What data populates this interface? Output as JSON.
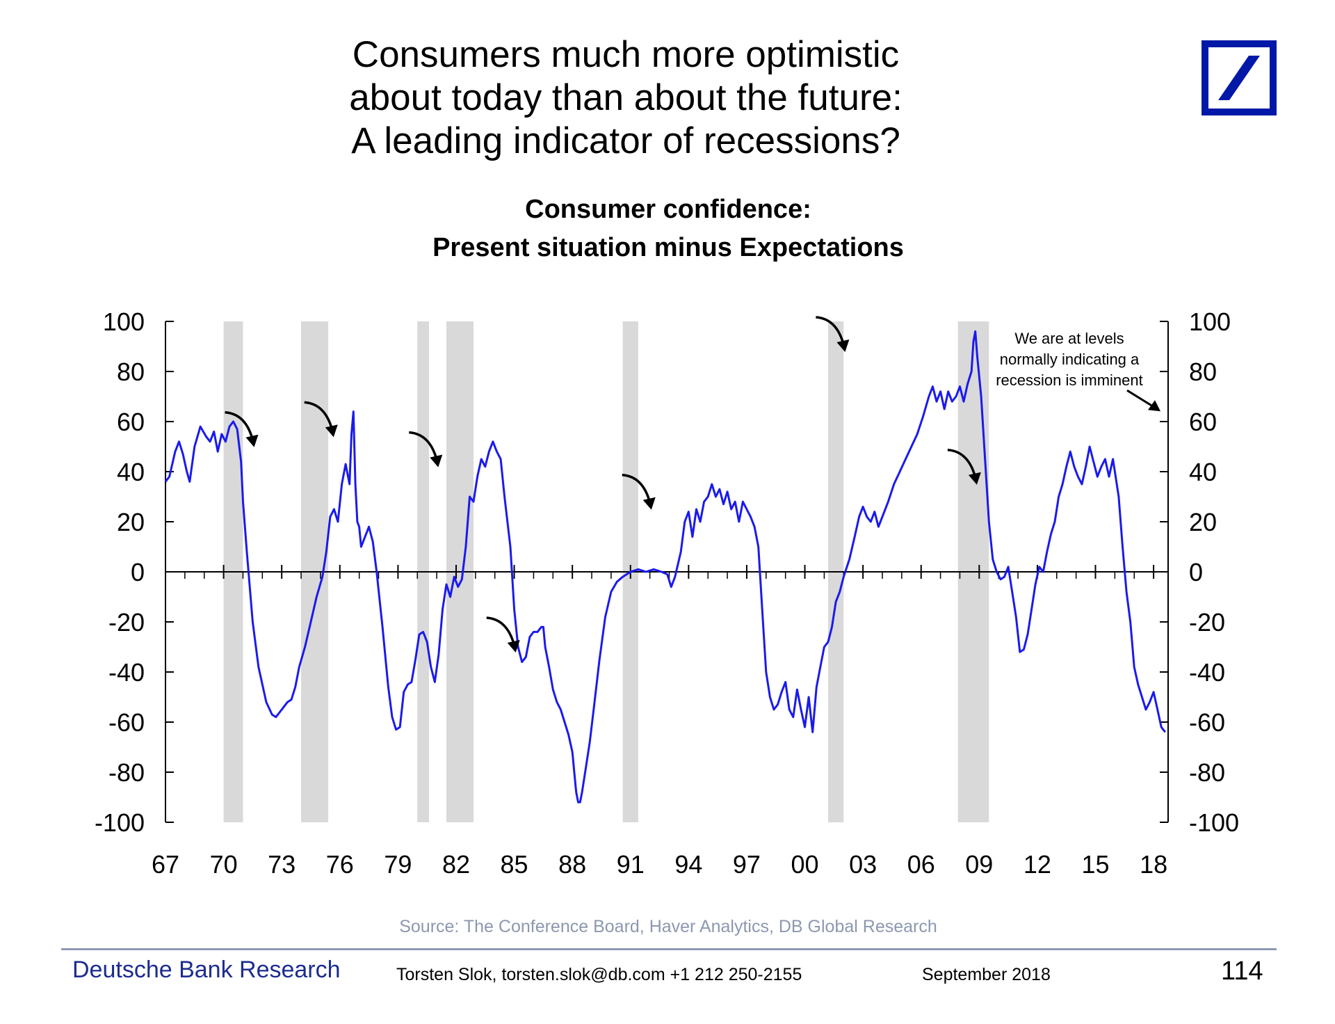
{
  "slide": {
    "title_lines": [
      "Consumers much more optimistic",
      "about today than about the future:",
      "A leading indicator of recessions?"
    ],
    "logo_icon": "deutsche-bank-slash-logo",
    "brand_color": "#0018a8"
  },
  "chart_data": {
    "type": "line",
    "title": "Consumer confidence:",
    "subtitle": "Present situation minus Expectations",
    "xlabel": "",
    "ylabel": "",
    "xlim": [
      1967,
      2018.75
    ],
    "ylim": [
      -100,
      100
    ],
    "yticks": [
      100,
      80,
      60,
      40,
      20,
      0,
      -20,
      -40,
      -60,
      -80,
      -100
    ],
    "ytick_labels": [
      "100",
      "80",
      "60",
      "40",
      "20",
      "0",
      "-20",
      "-40",
      "-60",
      "-80",
      "-100"
    ],
    "xticks": [
      1967,
      1970,
      1973,
      1976,
      1979,
      1982,
      1985,
      1988,
      1991,
      1994,
      1997,
      2000,
      2003,
      2006,
      2009,
      2012,
      2015,
      2018
    ],
    "xtick_labels": [
      "67",
      "70",
      "73",
      "76",
      "79",
      "82",
      "85",
      "88",
      "91",
      "94",
      "97",
      "00",
      "03",
      "06",
      "09",
      "12",
      "15",
      "18"
    ],
    "series": [
      {
        "name": "Present situation minus Expectations",
        "color": "#1a1aee",
        "points": [
          [
            1967.0,
            36
          ],
          [
            1967.2,
            38
          ],
          [
            1967.5,
            48
          ],
          [
            1967.7,
            52
          ],
          [
            1967.9,
            47
          ],
          [
            1968.1,
            40
          ],
          [
            1968.25,
            36
          ],
          [
            1968.5,
            50
          ],
          [
            1968.8,
            58
          ],
          [
            1969.1,
            54
          ],
          [
            1969.3,
            52
          ],
          [
            1969.5,
            56
          ],
          [
            1969.7,
            48
          ],
          [
            1969.9,
            55
          ],
          [
            1970.1,
            52
          ],
          [
            1970.3,
            58
          ],
          [
            1970.5,
            60
          ],
          [
            1970.7,
            57
          ],
          [
            1970.9,
            44
          ],
          [
            1971.0,
            28
          ],
          [
            1971.2,
            8
          ],
          [
            1971.5,
            -20
          ],
          [
            1971.8,
            -38
          ],
          [
            1972.2,
            -52
          ],
          [
            1972.5,
            -57
          ],
          [
            1972.7,
            -58
          ],
          [
            1973.0,
            -55
          ],
          [
            1973.3,
            -52
          ],
          [
            1973.5,
            -51
          ],
          [
            1973.7,
            -46
          ],
          [
            1973.9,
            -38
          ],
          [
            1974.2,
            -30
          ],
          [
            1974.5,
            -20
          ],
          [
            1974.8,
            -10
          ],
          [
            1975.1,
            -2
          ],
          [
            1975.3,
            8
          ],
          [
            1975.5,
            22
          ],
          [
            1975.7,
            25
          ],
          [
            1975.9,
            20
          ],
          [
            1976.1,
            35
          ],
          [
            1976.3,
            43
          ],
          [
            1976.5,
            35
          ],
          [
            1976.6,
            55
          ],
          [
            1976.7,
            64
          ],
          [
            1976.8,
            35
          ],
          [
            1976.9,
            20
          ],
          [
            1977.0,
            18
          ],
          [
            1977.1,
            10
          ],
          [
            1977.3,
            14
          ],
          [
            1977.5,
            18
          ],
          [
            1977.7,
            12
          ],
          [
            1977.9,
            0
          ],
          [
            1978.2,
            -22
          ],
          [
            1978.5,
            -46
          ],
          [
            1978.7,
            -58
          ],
          [
            1978.9,
            -63
          ],
          [
            1979.1,
            -62
          ],
          [
            1979.3,
            -48
          ],
          [
            1979.5,
            -45
          ],
          [
            1979.7,
            -44
          ],
          [
            1979.9,
            -35
          ],
          [
            1980.1,
            -25
          ],
          [
            1980.3,
            -24
          ],
          [
            1980.5,
            -28
          ],
          [
            1980.7,
            -38
          ],
          [
            1980.9,
            -44
          ],
          [
            1981.1,
            -33
          ],
          [
            1981.3,
            -15
          ],
          [
            1981.5,
            -5
          ],
          [
            1981.7,
            -10
          ],
          [
            1981.9,
            -2
          ],
          [
            1982.1,
            -6
          ],
          [
            1982.3,
            -3
          ],
          [
            1982.5,
            10
          ],
          [
            1982.7,
            30
          ],
          [
            1982.9,
            28
          ],
          [
            1983.1,
            38
          ],
          [
            1983.3,
            45
          ],
          [
            1983.5,
            42
          ],
          [
            1983.7,
            48
          ],
          [
            1983.9,
            52
          ],
          [
            1984.1,
            48
          ],
          [
            1984.3,
            45
          ],
          [
            1984.5,
            30
          ],
          [
            1984.8,
            10
          ],
          [
            1985.0,
            -15
          ],
          [
            1985.2,
            -30
          ],
          [
            1985.4,
            -36
          ],
          [
            1985.6,
            -34
          ],
          [
            1985.8,
            -26
          ],
          [
            1986.0,
            -24
          ],
          [
            1986.2,
            -24
          ],
          [
            1986.4,
            -22
          ],
          [
            1986.5,
            -22
          ],
          [
            1986.6,
            -30
          ],
          [
            1986.8,
            -38
          ],
          [
            1987.0,
            -47
          ],
          [
            1987.2,
            -52
          ],
          [
            1987.4,
            -55
          ],
          [
            1987.6,
            -60
          ],
          [
            1987.8,
            -65
          ],
          [
            1988.0,
            -72
          ],
          [
            1988.1,
            -80
          ],
          [
            1988.2,
            -88
          ],
          [
            1988.3,
            -92
          ],
          [
            1988.4,
            -92
          ],
          [
            1988.5,
            -88
          ],
          [
            1988.7,
            -78
          ],
          [
            1988.9,
            -68
          ],
          [
            1989.1,
            -55
          ],
          [
            1989.4,
            -35
          ],
          [
            1989.7,
            -18
          ],
          [
            1990.0,
            -8
          ],
          [
            1990.3,
            -4
          ],
          [
            1990.6,
            -2
          ],
          [
            1991.0,
            0
          ],
          [
            1991.4,
            1
          ],
          [
            1991.8,
            0
          ],
          [
            1992.2,
            1
          ],
          [
            1992.6,
            0
          ],
          [
            1992.9,
            -1
          ],
          [
            1993.1,
            -6
          ],
          [
            1993.3,
            -2
          ],
          [
            1993.6,
            8
          ],
          [
            1993.8,
            20
          ],
          [
            1994.0,
            24
          ],
          [
            1994.2,
            14
          ],
          [
            1994.4,
            25
          ],
          [
            1994.6,
            20
          ],
          [
            1994.8,
            28
          ],
          [
            1995.0,
            30
          ],
          [
            1995.2,
            35
          ],
          [
            1995.4,
            30
          ],
          [
            1995.6,
            33
          ],
          [
            1995.8,
            27
          ],
          [
            1996.0,
            32
          ],
          [
            1996.2,
            25
          ],
          [
            1996.4,
            28
          ],
          [
            1996.6,
            20
          ],
          [
            1996.8,
            28
          ],
          [
            1997.0,
            25
          ],
          [
            1997.2,
            22
          ],
          [
            1997.4,
            18
          ],
          [
            1997.6,
            10
          ],
          [
            1997.8,
            -15
          ],
          [
            1998.0,
            -40
          ],
          [
            1998.2,
            -50
          ],
          [
            1998.4,
            -55
          ],
          [
            1998.6,
            -53
          ],
          [
            1998.8,
            -48
          ],
          [
            1999.0,
            -44
          ],
          [
            1999.2,
            -55
          ],
          [
            1999.4,
            -58
          ],
          [
            1999.6,
            -47
          ],
          [
            1999.8,
            -55
          ],
          [
            2000.0,
            -62
          ],
          [
            2000.2,
            -50
          ],
          [
            2000.4,
            -64
          ],
          [
            2000.6,
            -46
          ],
          [
            2000.8,
            -38
          ],
          [
            2001.0,
            -30
          ],
          [
            2001.2,
            -28
          ],
          [
            2001.4,
            -22
          ],
          [
            2001.6,
            -12
          ],
          [
            2001.8,
            -8
          ],
          [
            2002.0,
            -2
          ],
          [
            2002.3,
            5
          ],
          [
            2002.6,
            15
          ],
          [
            2002.8,
            22
          ],
          [
            2003.0,
            26
          ],
          [
            2003.2,
            22
          ],
          [
            2003.4,
            20
          ],
          [
            2003.6,
            24
          ],
          [
            2003.8,
            18
          ],
          [
            2004.0,
            22
          ],
          [
            2004.3,
            28
          ],
          [
            2004.6,
            35
          ],
          [
            2004.9,
            40
          ],
          [
            2005.2,
            45
          ],
          [
            2005.5,
            50
          ],
          [
            2005.8,
            55
          ],
          [
            2006.1,
            62
          ],
          [
            2006.4,
            70
          ],
          [
            2006.6,
            74
          ],
          [
            2006.8,
            68
          ],
          [
            2007.0,
            72
          ],
          [
            2007.2,
            65
          ],
          [
            2007.4,
            72
          ],
          [
            2007.6,
            68
          ],
          [
            2007.8,
            70
          ],
          [
            2008.0,
            74
          ],
          [
            2008.2,
            68
          ],
          [
            2008.4,
            75
          ],
          [
            2008.6,
            80
          ],
          [
            2008.7,
            92
          ],
          [
            2008.8,
            96
          ],
          [
            2008.9,
            86
          ],
          [
            2009.1,
            70
          ],
          [
            2009.3,
            45
          ],
          [
            2009.5,
            20
          ],
          [
            2009.7,
            5
          ],
          [
            2009.9,
            0
          ],
          [
            2010.1,
            -3
          ],
          [
            2010.3,
            -2
          ],
          [
            2010.5,
            2
          ],
          [
            2010.7,
            -8
          ],
          [
            2010.9,
            -18
          ],
          [
            2011.1,
            -32
          ],
          [
            2011.3,
            -31
          ],
          [
            2011.5,
            -25
          ],
          [
            2011.7,
            -15
          ],
          [
            2011.9,
            -5
          ],
          [
            2012.1,
            2
          ],
          [
            2012.3,
            0
          ],
          [
            2012.5,
            8
          ],
          [
            2012.7,
            15
          ],
          [
            2012.9,
            20
          ],
          [
            2013.1,
            30
          ],
          [
            2013.3,
            35
          ],
          [
            2013.5,
            42
          ],
          [
            2013.7,
            48
          ],
          [
            2013.9,
            42
          ],
          [
            2014.1,
            38
          ],
          [
            2014.3,
            35
          ],
          [
            2014.5,
            42
          ],
          [
            2014.7,
            50
          ],
          [
            2014.9,
            44
          ],
          [
            2015.1,
            38
          ],
          [
            2015.3,
            42
          ],
          [
            2015.5,
            45
          ],
          [
            2015.7,
            38
          ],
          [
            2015.9,
            45
          ],
          [
            2016.0,
            40
          ],
          [
            2016.2,
            30
          ],
          [
            2016.4,
            10
          ],
          [
            2016.6,
            -8
          ],
          [
            2016.8,
            -20
          ],
          [
            2017.0,
            -38
          ],
          [
            2017.2,
            -45
          ],
          [
            2017.4,
            -50
          ],
          [
            2017.6,
            -55
          ],
          [
            2017.8,
            -52
          ],
          [
            2018.0,
            -48
          ],
          [
            2018.2,
            -55
          ],
          [
            2018.4,
            -62
          ],
          [
            2018.6,
            -64
          ]
        ]
      }
    ],
    "recession_bands": [
      [
        1970.0,
        1971.0
      ],
      [
        1974.0,
        1975.4
      ],
      [
        1980.0,
        1980.6
      ],
      [
        1981.5,
        1982.9
      ],
      [
        1990.6,
        1991.4
      ],
      [
        2001.2,
        2002.0
      ],
      [
        2007.9,
        2009.5
      ]
    ],
    "annotation": {
      "lines": [
        "We are at levels",
        "normally indicating a",
        "recession is imminent"
      ],
      "points_to": [
        2018.5,
        63
      ]
    },
    "peak_arrows": [
      [
        1970.5,
        62
      ],
      [
        1974.6,
        66
      ],
      [
        1980.0,
        54
      ],
      [
        1984.0,
        -20
      ],
      [
        1991.0,
        37
      ],
      [
        2001.0,
        100
      ],
      [
        2007.8,
        47
      ]
    ]
  },
  "source": {
    "text": "Source: The Conference Board, Haver Analytics, DB Global Research"
  },
  "footer": {
    "brand": "Deutsche Bank Research",
    "author": "Torsten Slok, torsten.slok@db.com  +1 212 250-2155",
    "date": "September 2018",
    "page": "114"
  }
}
